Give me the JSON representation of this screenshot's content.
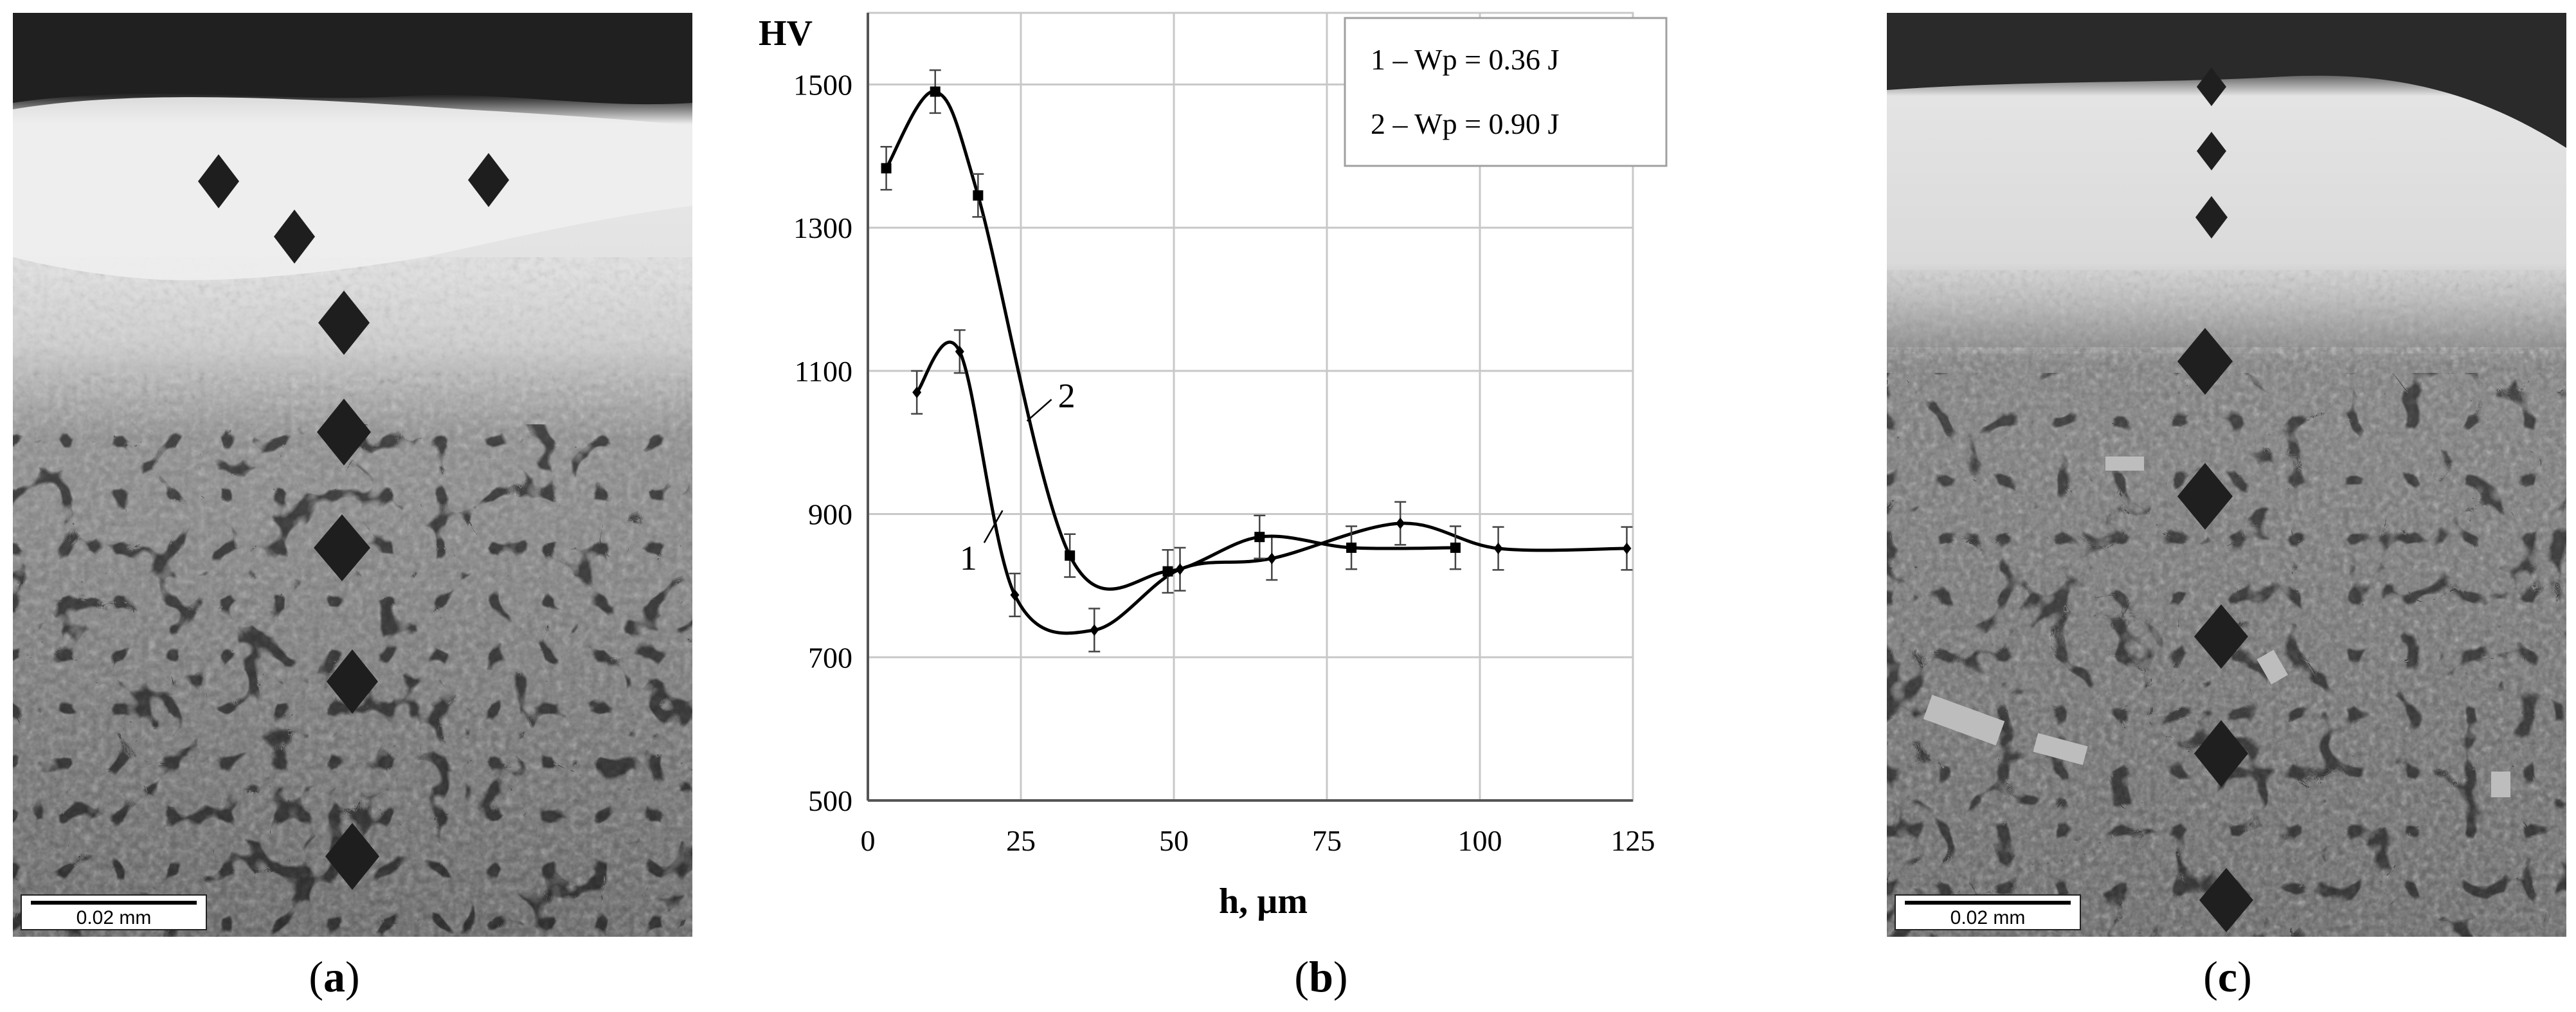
{
  "panels": {
    "a": {
      "label": "a",
      "scale_label": "0.02 mm"
    },
    "b": {
      "label": "b"
    },
    "c": {
      "label": "c",
      "scale_label": "0.02 mm"
    }
  },
  "chart_data": {
    "type": "line",
    "title": "",
    "ylabel": "HV",
    "xlabel": "h, µm",
    "xlim": [
      0,
      125
    ],
    "ylim": [
      500,
      1600
    ],
    "x_ticks": [
      0,
      25,
      50,
      75,
      100,
      125
    ],
    "y_ticks": [
      500,
      700,
      900,
      1100,
      1300,
      1500
    ],
    "grid": true,
    "legend": {
      "position": "top-right",
      "entries": [
        "1 – Wp = 0.36 J",
        "2 –  Wp = 0.90 J"
      ]
    },
    "series": [
      {
        "name": "1",
        "label": "1",
        "marker": "diamond",
        "x": [
          8,
          15,
          24,
          37,
          51,
          66,
          87,
          103,
          124
        ],
        "y": [
          1070,
          1127,
          787,
          738,
          823,
          838,
          887,
          852,
          852
        ],
        "err": [
          30,
          30,
          30,
          30,
          30,
          30,
          30,
          30,
          30
        ]
      },
      {
        "name": "2",
        "label": "2",
        "marker": "square",
        "x": [
          3,
          11,
          18,
          33,
          49,
          64,
          79,
          96
        ],
        "y": [
          1383,
          1490,
          1345,
          842,
          820,
          868,
          853,
          853
        ],
        "err": [
          30,
          30,
          30,
          30,
          30,
          30,
          30,
          30
        ]
      }
    ]
  }
}
